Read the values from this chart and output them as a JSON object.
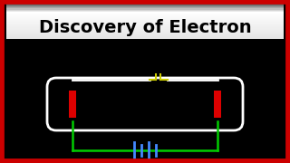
{
  "bg_color": "#000000",
  "border_color": "#cc0000",
  "border_lw": 7,
  "title": "Discovery of Electron",
  "title_color": "#000000",
  "title_fontsize": 14,
  "title_bg_top": "#000000",
  "title_bg_bot": "#e0e0e0",
  "tube_color": "#ffffff",
  "electrode_color": "#dd0000",
  "circuit_color": "#00cc00",
  "switch_color": "#cccc00",
  "battery_color": "#4488ff"
}
